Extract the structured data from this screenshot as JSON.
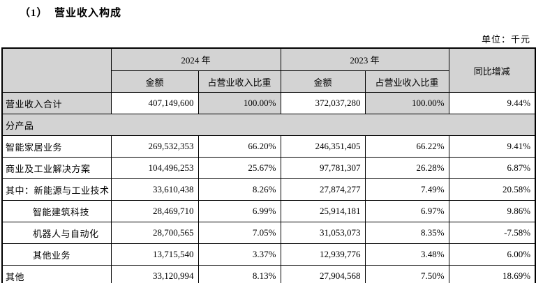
{
  "page": {
    "title": "（1）  营业收入构成",
    "unit_label": "单位：千元"
  },
  "colors": {
    "header_bg": "#d3d3d3",
    "border": "#000000",
    "page_bg": "#ffffff"
  },
  "table": {
    "header": {
      "year_2024": "2024 年",
      "year_2023": "2023 年",
      "amount_2024": "金额",
      "share_2024": "占营业收入比重",
      "amount_2023": "金额",
      "share_2023": "占营业收入比重",
      "yoy": "同比增减"
    },
    "rows": [
      {
        "type": "total",
        "label": "营业收入合计",
        "indent": false,
        "values": [
          "407,149,600",
          "100.00%",
          "372,037,280",
          "100.00%",
          "9.44%"
        ]
      },
      {
        "type": "section",
        "label": "分产品"
      },
      {
        "type": "data",
        "label": "智能家居业务",
        "indent": false,
        "values": [
          "269,532,353",
          "66.20%",
          "246,351,405",
          "66.22%",
          "9.41%"
        ]
      },
      {
        "type": "data",
        "label": "商业及工业解决方案",
        "indent": false,
        "values": [
          "104,496,253",
          "25.67%",
          "97,781,307",
          "26.28%",
          "6.87%"
        ]
      },
      {
        "type": "data",
        "label": "其中：新能源与工业技术",
        "indent": false,
        "values": [
          "33,610,438",
          "8.26%",
          "27,874,277",
          "7.49%",
          "20.58%"
        ]
      },
      {
        "type": "data",
        "label": "智能建筑科技",
        "indent": true,
        "values": [
          "28,469,710",
          "6.99%",
          "25,914,181",
          "6.97%",
          "9.86%"
        ]
      },
      {
        "type": "data",
        "label": "机器人与自动化",
        "indent": true,
        "values": [
          "28,700,565",
          "7.05%",
          "31,053,073",
          "8.35%",
          "-7.58%"
        ]
      },
      {
        "type": "data",
        "label": "其他业务",
        "indent": true,
        "values": [
          "13,715,540",
          "3.37%",
          "12,939,776",
          "3.48%",
          "6.00%"
        ]
      },
      {
        "type": "data",
        "label": "其他",
        "indent": false,
        "values": [
          "33,120,994",
          "8.13%",
          "27,904,568",
          "7.50%",
          "18.69%"
        ]
      }
    ]
  }
}
